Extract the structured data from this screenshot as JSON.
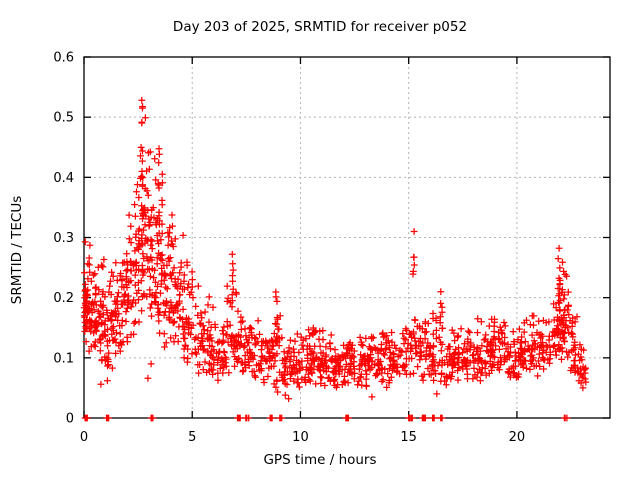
{
  "chart_data": {
    "type": "scatter",
    "title": "Day 203 of 2025, SRMTID for receiver p052",
    "xlabel": "GPS time / hours",
    "ylabel": "SRMTID / TECUs",
    "xlim": [
      0,
      24.3
    ],
    "ylim": [
      0,
      0.6
    ],
    "xtick_values": [
      0,
      5,
      10,
      15,
      20
    ],
    "xtick_labels": [
      "0",
      "5",
      "10",
      "15",
      "20"
    ],
    "ytick_values": [
      0,
      0.1,
      0.2,
      0.3,
      0.4,
      0.5,
      0.6
    ],
    "ytick_labels": [
      "0",
      "0.1",
      "0.2",
      "0.3",
      "0.4",
      "0.5",
      "0.6"
    ],
    "grid": "dotted-major",
    "legend": "none",
    "marker": "plus",
    "marker_color": "#ff0000",
    "grid_color": "#b4b4b4",
    "axis_color": "#000000",
    "max_point": [
      2.7,
      0.53
    ],
    "scatter_profile": {
      "seed": 987654321,
      "bands": [
        [
          0.0,
          0.3,
          40,
          0.1,
          0.31
        ],
        [
          0.3,
          0.8,
          45,
          0.11,
          0.26
        ],
        [
          0.8,
          1.3,
          50,
          0.07,
          0.3
        ],
        [
          1.3,
          1.8,
          45,
          0.08,
          0.27
        ],
        [
          1.8,
          2.3,
          45,
          0.12,
          0.36
        ],
        [
          2.3,
          2.6,
          32,
          0.15,
          0.46
        ],
        [
          2.6,
          2.9,
          34,
          0.17,
          0.53
        ],
        [
          2.9,
          3.3,
          42,
          0.14,
          0.47
        ],
        [
          3.3,
          3.7,
          45,
          0.13,
          0.45
        ],
        [
          3.7,
          4.1,
          42,
          0.11,
          0.38
        ],
        [
          4.1,
          4.6,
          40,
          0.1,
          0.32
        ],
        [
          4.6,
          5.1,
          36,
          0.08,
          0.28
        ],
        [
          5.1,
          5.6,
          32,
          0.07,
          0.24
        ],
        [
          5.6,
          6.1,
          32,
          0.06,
          0.21
        ],
        [
          6.1,
          6.6,
          30,
          0.06,
          0.19
        ],
        [
          6.6,
          7.1,
          32,
          0.07,
          0.24
        ],
        [
          7.1,
          7.6,
          30,
          0.07,
          0.2
        ],
        [
          7.6,
          8.1,
          30,
          0.06,
          0.18
        ],
        [
          8.1,
          8.6,
          30,
          0.05,
          0.17
        ],
        [
          8.6,
          9.1,
          32,
          0.04,
          0.19
        ],
        [
          9.1,
          9.6,
          30,
          0.04,
          0.16
        ],
        [
          9.6,
          10.1,
          30,
          0.05,
          0.15
        ],
        [
          10.1,
          10.6,
          32,
          0.05,
          0.17
        ],
        [
          10.6,
          11.1,
          32,
          0.05,
          0.16
        ],
        [
          11.1,
          11.6,
          32,
          0.05,
          0.15
        ],
        [
          11.6,
          12.1,
          30,
          0.05,
          0.14
        ],
        [
          12.1,
          12.6,
          32,
          0.05,
          0.15
        ],
        [
          12.6,
          13.1,
          30,
          0.05,
          0.14
        ],
        [
          13.1,
          13.6,
          30,
          0.06,
          0.15
        ],
        [
          13.6,
          14.1,
          30,
          0.05,
          0.15
        ],
        [
          14.1,
          14.6,
          30,
          0.06,
          0.16
        ],
        [
          14.6,
          15.1,
          26,
          0.06,
          0.17
        ],
        [
          15.1,
          15.6,
          24,
          0.07,
          0.2
        ],
        [
          15.6,
          16.1,
          28,
          0.06,
          0.2
        ],
        [
          16.1,
          16.6,
          30,
          0.05,
          0.23
        ],
        [
          16.6,
          17.1,
          28,
          0.05,
          0.15
        ],
        [
          17.1,
          17.6,
          28,
          0.06,
          0.16
        ],
        [
          17.6,
          18.1,
          30,
          0.06,
          0.17
        ],
        [
          18.1,
          18.6,
          30,
          0.06,
          0.18
        ],
        [
          18.6,
          19.1,
          30,
          0.07,
          0.17
        ],
        [
          19.1,
          19.6,
          30,
          0.07,
          0.19
        ],
        [
          19.6,
          20.1,
          30,
          0.06,
          0.16
        ],
        [
          20.1,
          20.6,
          30,
          0.07,
          0.18
        ],
        [
          20.6,
          21.1,
          30,
          0.06,
          0.19
        ],
        [
          21.1,
          21.6,
          28,
          0.07,
          0.18
        ],
        [
          21.6,
          22.0,
          26,
          0.09,
          0.24
        ],
        [
          22.0,
          22.4,
          30,
          0.09,
          0.26
        ],
        [
          22.4,
          22.8,
          26,
          0.07,
          0.2
        ],
        [
          22.8,
          23.2,
          22,
          0.05,
          0.13
        ]
      ],
      "columns": [
        [
          0.1,
          10,
          0.12,
          0.3
        ],
        [
          2.68,
          12,
          0.3,
          0.53
        ],
        [
          3.45,
          10,
          0.28,
          0.45
        ],
        [
          6.85,
          8,
          0.18,
          0.27
        ],
        [
          8.9,
          6,
          0.15,
          0.21
        ],
        [
          10.6,
          5,
          0.12,
          0.18
        ],
        [
          15.25,
          10,
          0.1,
          0.31
        ],
        [
          16.5,
          8,
          0.08,
          0.24
        ],
        [
          18.95,
          6,
          0.1,
          0.18
        ],
        [
          21.95,
          14,
          0.1,
          0.28
        ],
        [
          22.15,
          12,
          0.1,
          0.26
        ]
      ],
      "zero_clusters": [
        [
          0.1,
          6
        ],
        [
          1.1,
          6
        ],
        [
          3.1,
          2
        ],
        [
          3.2,
          1
        ],
        [
          7.15,
          6
        ],
        [
          7.5,
          2
        ],
        [
          7.6,
          1
        ],
        [
          8.65,
          6
        ],
        [
          9.05,
          2
        ],
        [
          9.15,
          1
        ],
        [
          12.15,
          7
        ],
        [
          15.05,
          4
        ],
        [
          15.15,
          2
        ],
        [
          15.7,
          5
        ],
        [
          16.15,
          5
        ],
        [
          16.55,
          6
        ],
        [
          22.2,
          2
        ],
        [
          22.3,
          1
        ]
      ],
      "extra_points": [
        [
          0.03,
          0.2
        ],
        [
          0.78,
          0.056
        ],
        [
          1.08,
          0.062
        ],
        [
          2.95,
          0.066
        ],
        [
          3.1,
          0.09
        ],
        [
          2.67,
          0.528
        ],
        [
          2.7,
          0.515
        ],
        [
          6.85,
          0.272
        ],
        [
          9.3,
          0.038
        ],
        [
          9.45,
          0.032
        ],
        [
          13.3,
          0.035
        ],
        [
          15.25,
          0.31
        ],
        [
          16.3,
          0.04
        ],
        [
          21.95,
          0.282
        ],
        [
          23.05,
          0.05
        ],
        [
          23.15,
          0.065
        ]
      ]
    }
  }
}
